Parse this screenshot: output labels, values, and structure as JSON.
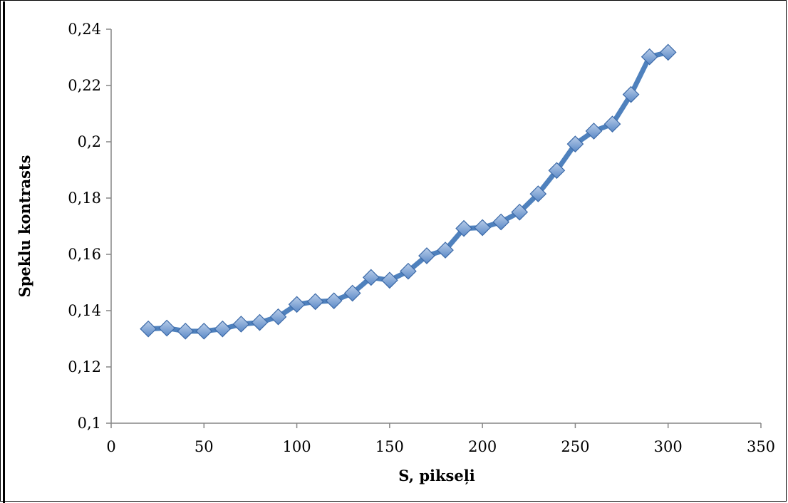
{
  "chart_data": {
    "type": "line",
    "title": "",
    "xlabel": "S, pikseļi",
    "ylabel": "Speklu kontrasts",
    "xlim": [
      0,
      350
    ],
    "ylim": [
      0.1,
      0.24
    ],
    "x_ticks": [
      0,
      50,
      100,
      150,
      200,
      250,
      300,
      350
    ],
    "x_tick_labels": [
      "0",
      "50",
      "100",
      "150",
      "200",
      "250",
      "300",
      "350"
    ],
    "y_ticks": [
      0.1,
      0.12,
      0.14,
      0.16,
      0.18,
      0.2,
      0.22,
      0.24
    ],
    "y_tick_labels": [
      "0,1",
      "0,12",
      "0,14",
      "0,16",
      "0,18",
      "0,2",
      "0,22",
      "0,24"
    ],
    "grid": false,
    "legend": "none",
    "series": [
      {
        "color": "#4f81bd",
        "marker": "diamond",
        "x": [
          20,
          30,
          40,
          50,
          60,
          70,
          80,
          90,
          100,
          110,
          120,
          130,
          140,
          150,
          160,
          170,
          180,
          190,
          200,
          210,
          220,
          230,
          240,
          250,
          260,
          270,
          280,
          290,
          300
        ],
        "y": [
          0.1335,
          0.1338,
          0.1327,
          0.1327,
          0.1335,
          0.1352,
          0.1358,
          0.1378,
          0.1422,
          0.1432,
          0.1435,
          0.1462,
          0.1518,
          0.1508,
          0.154,
          0.1595,
          0.1615,
          0.1692,
          0.1695,
          0.1715,
          0.175,
          0.1815,
          0.1898,
          0.1992,
          0.2038,
          0.2063,
          0.2168,
          0.2302,
          0.2318
        ]
      }
    ]
  }
}
